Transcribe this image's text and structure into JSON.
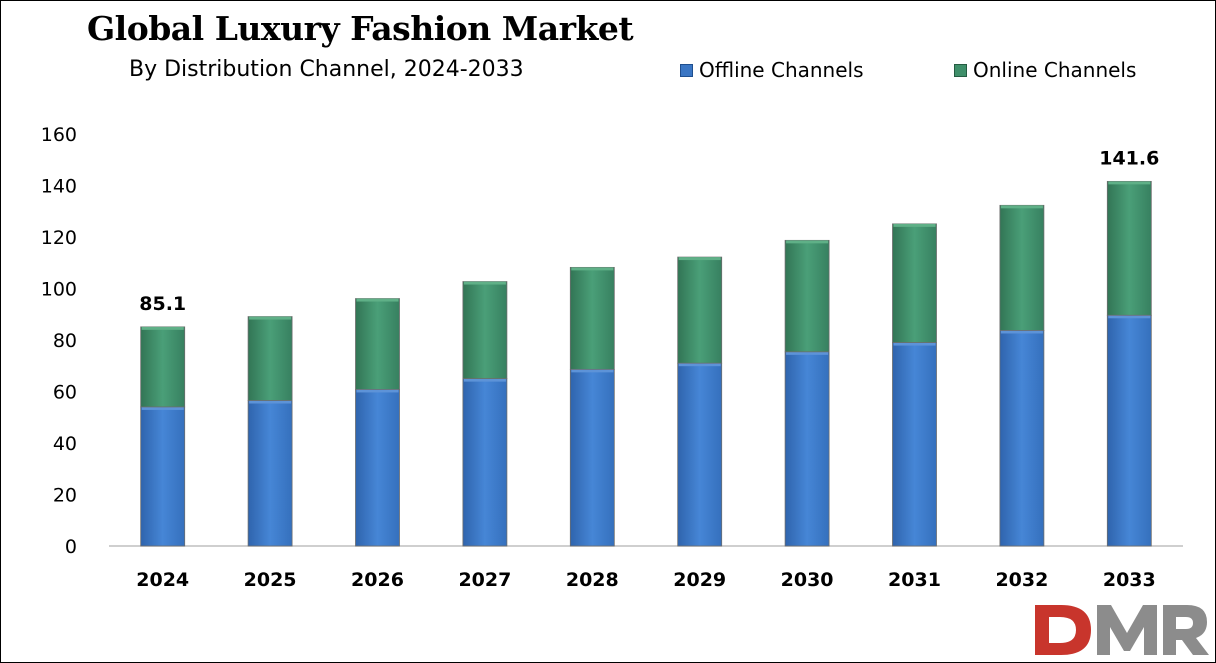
{
  "chart_data": {
    "type": "bar",
    "stacked": true,
    "title": "Global Luxury Fashion Market",
    "subtitle": "By Distribution Channel, 2024-2033",
    "categories": [
      "2024",
      "2025",
      "2026",
      "2027",
      "2028",
      "2029",
      "2030",
      "2031",
      "2032",
      "2033"
    ],
    "series": [
      {
        "name": "Offline Channels",
        "color": "#3a76c4",
        "values": [
          54.0,
          56.5,
          60.8,
          65.0,
          68.6,
          71.0,
          75.4,
          79.0,
          83.7,
          89.6
        ]
      },
      {
        "name": "Online Channels",
        "color": "#3f8f6a",
        "values": [
          31.1,
          32.6,
          35.3,
          37.7,
          39.6,
          41.2,
          43.3,
          46.1,
          48.6,
          52.0
        ]
      }
    ],
    "data_labels": [
      {
        "category": "2024",
        "text": "85.1"
      },
      {
        "category": "2033",
        "text": "141.6"
      }
    ],
    "ylim": [
      0,
      160
    ],
    "yticks": [
      0,
      20,
      40,
      60,
      80,
      100,
      120,
      140,
      160
    ],
    "grid": false,
    "legend_position": "top-right"
  },
  "logo": {
    "text": "DMR",
    "colors": [
      "#c8352c",
      "#8c8c8c"
    ]
  }
}
